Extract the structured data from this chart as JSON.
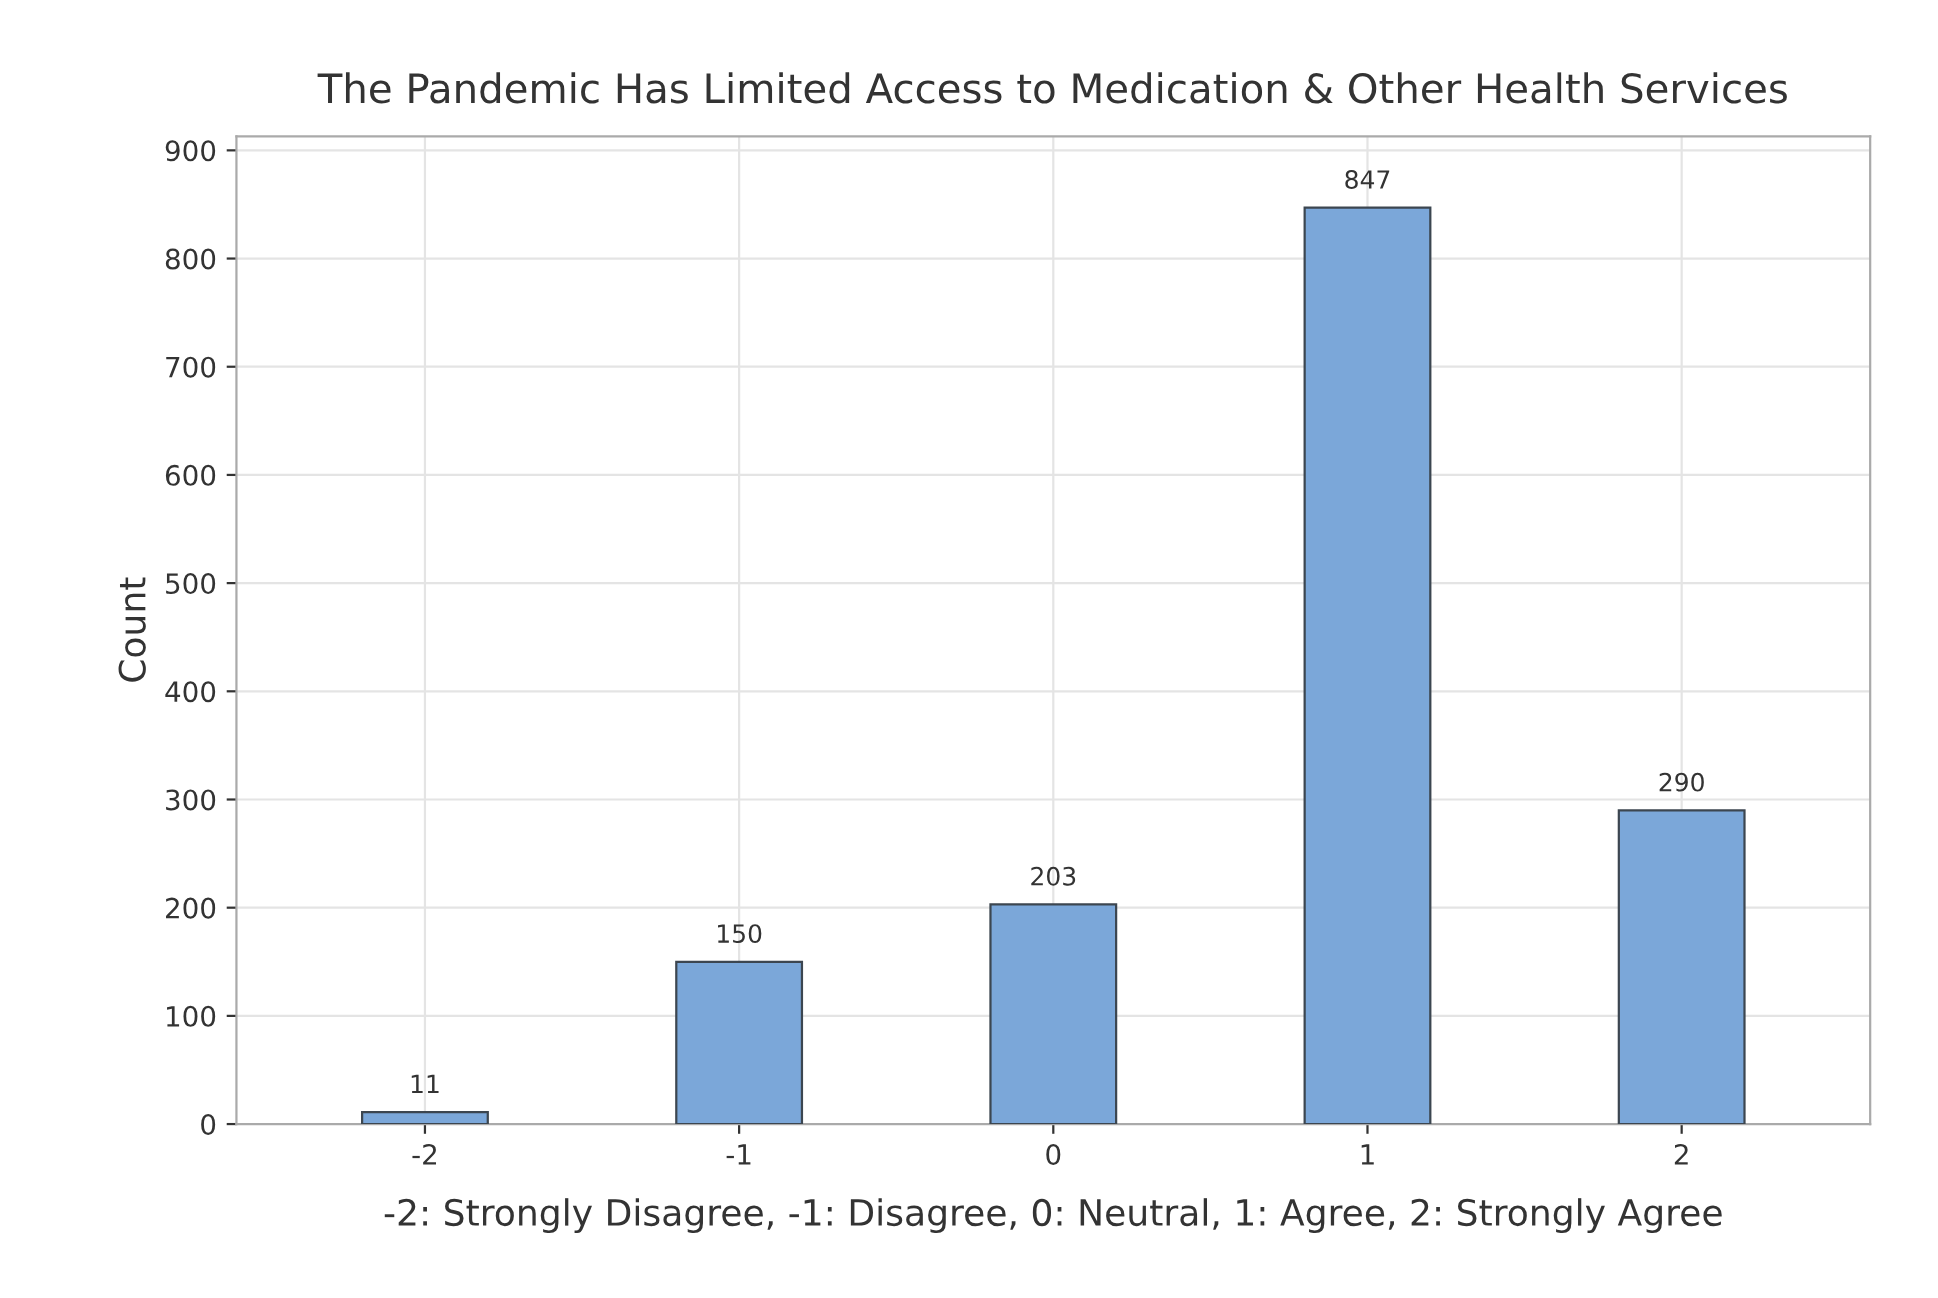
{
  "chart_data": {
    "type": "bar",
    "title": "The Pandemic Has Limited Access to Medication & Other Health Services",
    "xlabel": "-2: Strongly Disagree, -1: Disagree, 0: Neutral, 1: Agree, 2: Strongly Agree",
    "ylabel": "Count",
    "categories": [
      "-2",
      "-1",
      "0",
      "1",
      "2"
    ],
    "values": [
      11,
      150,
      203,
      847,
      290
    ],
    "color": "#7ba7d9",
    "ylim": [
      0,
      913
    ],
    "yticks": [
      0,
      100,
      200,
      300,
      400,
      500,
      600,
      700,
      800,
      900
    ],
    "grid": true,
    "data_labels": true
  }
}
